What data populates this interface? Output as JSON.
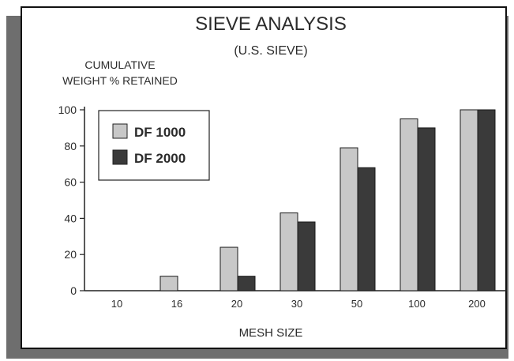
{
  "chart_data": {
    "type": "bar",
    "title": "SIEVE ANALYSIS",
    "subtitle": "(U.S. SIEVE)",
    "ylabel_line1": "CUMULATIVE",
    "ylabel_line2": "WEIGHT % RETAINED",
    "xlabel": "MESH SIZE",
    "categories": [
      "10",
      "16",
      "20",
      "30",
      "50",
      "100",
      "200"
    ],
    "yticks": [
      "0",
      "20",
      "40",
      "60",
      "80",
      "100"
    ],
    "ylim": [
      0,
      100
    ],
    "grid": false,
    "legend_position": "top-left",
    "series": [
      {
        "name": "DF 1000",
        "color": "#c8c8c8",
        "values": [
          0,
          8,
          24,
          43,
          79,
          95,
          100
        ]
      },
      {
        "name": "DF 2000",
        "color": "#3a3a3a",
        "values": [
          0,
          0,
          8,
          38,
          68,
          90,
          100
        ]
      }
    ]
  }
}
